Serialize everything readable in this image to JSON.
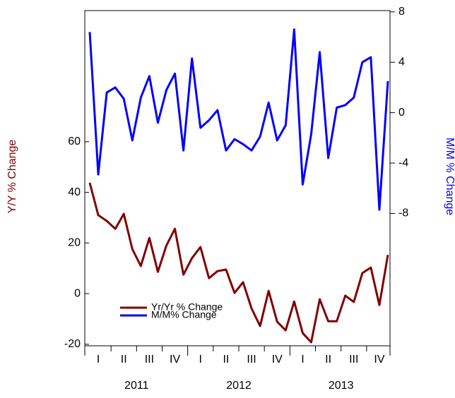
{
  "chart_data": {
    "type": "line",
    "y_label": "Y/Y % Change",
    "y2_label": "M/M % Change",
    "categories": [
      null,
      null,
      null,
      null,
      null,
      null,
      null,
      null,
      null,
      null,
      null,
      null,
      null,
      null,
      null,
      null,
      null,
      null,
      null,
      null,
      null,
      null,
      null,
      null,
      null,
      null,
      null,
      null,
      null,
      null,
      null,
      null,
      null,
      null,
      null,
      null
    ],
    "quarter_labels": [
      "I",
      "II",
      "III",
      "IV",
      "I",
      "II",
      "III",
      "IV",
      "I",
      "II",
      "III",
      "IV"
    ],
    "year_labels": [
      "2011",
      "2012",
      "2013"
    ],
    "series": [
      {
        "name": "Yr/Yr % Change",
        "color": "#800000",
        "axis": "y",
        "values": [
          43.8,
          31,
          28.7,
          25.6,
          31.5,
          17.6,
          10.9,
          22,
          8.6,
          19,
          25.6,
          7.5,
          14,
          18.4,
          6.1,
          8.9,
          9.5,
          0.3,
          4.5,
          -5.9,
          -12.8,
          1.1,
          -11.1,
          -14.5,
          -3.1,
          -15.6,
          -19.2,
          -2.2,
          -10.9,
          -10.9,
          -0.8,
          -3.3,
          8.1,
          10.3,
          -4.5,
          15.3
        ]
      },
      {
        "name": "M/M% Change",
        "color": "#0000ff",
        "axis": "y2",
        "values": [
          6.4,
          -4.9,
          1.6,
          2.0,
          1.1,
          -2.2,
          1.2,
          2.9,
          -0.8,
          1.8,
          3.1,
          -3.0,
          4.3,
          -1.2,
          -0.6,
          0.2,
          -3.0,
          -2.1,
          -2.5,
          -3.0,
          -1.9,
          0.8,
          -2.2,
          -1.0,
          6.6,
          -5.7,
          -1.7,
          4.8,
          -3.6,
          0.4,
          0.6,
          1.2,
          4.0,
          4.4,
          -7.7,
          2.5
        ]
      }
    ],
    "ylim": [
      -20.6,
      111.8
    ],
    "yticks": [
      -20,
      0,
      20,
      40,
      60
    ],
    "y2lim": [
      -18.5,
      8.1
    ],
    "y2ticks": [
      -8,
      -4,
      0,
      4,
      8
    ],
    "legend": "lower left"
  }
}
